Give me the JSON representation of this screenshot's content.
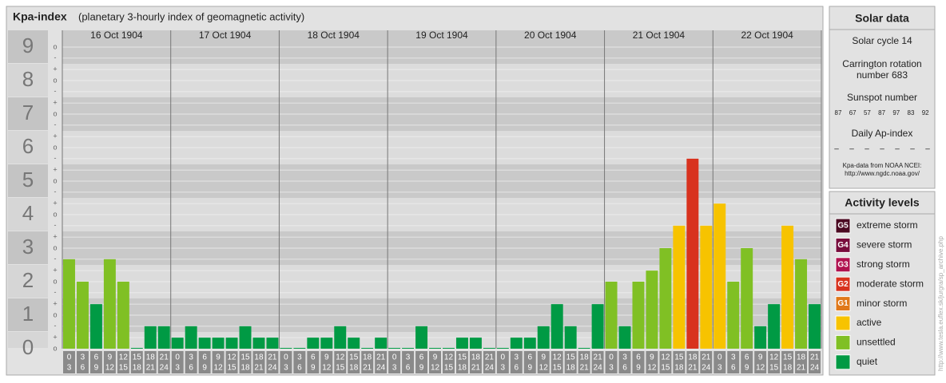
{
  "chart_data": {
    "type": "bar",
    "title": "Kpa-index",
    "subtitle": "(planetary 3-hourly index of geomagnetic activity)",
    "ylim": [
      0,
      9.5
    ],
    "yticks": [
      0,
      1,
      2,
      3,
      4,
      5,
      6,
      7,
      8,
      9
    ],
    "minor_ticks": [
      {
        "value": 0,
        "label": "o"
      },
      {
        "value": 0.33,
        "label": "+"
      },
      {
        "value": 0.67,
        "label": "-"
      },
      {
        "value": 1,
        "label": "o"
      },
      {
        "value": 1.33,
        "label": "+"
      },
      {
        "value": 1.67,
        "label": "-"
      },
      {
        "value": 2,
        "label": "o"
      },
      {
        "value": 2.33,
        "label": "+"
      },
      {
        "value": 2.67,
        "label": "-"
      },
      {
        "value": 3,
        "label": "o"
      },
      {
        "value": 3.33,
        "label": "+"
      },
      {
        "value": 3.67,
        "label": "-"
      },
      {
        "value": 4,
        "label": "o"
      },
      {
        "value": 4.33,
        "label": "+"
      },
      {
        "value": 4.67,
        "label": "-"
      },
      {
        "value": 5,
        "label": "o"
      },
      {
        "value": 5.33,
        "label": "+"
      },
      {
        "value": 5.67,
        "label": "-"
      },
      {
        "value": 6,
        "label": "o"
      },
      {
        "value": 6.33,
        "label": "+"
      },
      {
        "value": 6.67,
        "label": "-"
      },
      {
        "value": 7,
        "label": "o"
      },
      {
        "value": 7.33,
        "label": "+"
      },
      {
        "value": 7.67,
        "label": "-"
      },
      {
        "value": 8,
        "label": "o"
      },
      {
        "value": 8.33,
        "label": "+"
      },
      {
        "value": 8.67,
        "label": "-"
      },
      {
        "value": 9,
        "label": "o"
      }
    ],
    "hours": [
      [
        "0",
        "3"
      ],
      [
        "3",
        "6"
      ],
      [
        "6",
        "9"
      ],
      [
        "9",
        "12"
      ],
      [
        "12",
        "15"
      ],
      [
        "15",
        "18"
      ],
      [
        "18",
        "21"
      ],
      [
        "21",
        "24"
      ]
    ],
    "days": [
      {
        "date": "16 Oct 1904",
        "values": [
          2.67,
          2,
          1.33,
          2.67,
          2,
          0,
          0.67,
          0.67
        ],
        "colors": [
          "#80c024",
          "#80c024",
          "#009a44",
          "#80c024",
          "#80c024",
          "#009a44",
          "#009a44",
          "#009a44"
        ]
      },
      {
        "date": "17 Oct 1904",
        "values": [
          0.33,
          0.67,
          0.33,
          0.33,
          0.33,
          0.67,
          0.33,
          0.33
        ],
        "colors": [
          "#009a44",
          "#009a44",
          "#009a44",
          "#009a44",
          "#009a44",
          "#009a44",
          "#009a44",
          "#009a44"
        ]
      },
      {
        "date": "18 Oct 1904",
        "values": [
          0,
          0,
          0.33,
          0.33,
          0.67,
          0.33,
          0,
          0.33
        ],
        "colors": [
          "#009a44",
          "#009a44",
          "#009a44",
          "#009a44",
          "#009a44",
          "#009a44",
          "#009a44",
          "#009a44"
        ]
      },
      {
        "date": "19 Oct 1904",
        "values": [
          0,
          0,
          0.67,
          0,
          0,
          0.33,
          0.33,
          0
        ],
        "colors": [
          "#009a44",
          "#009a44",
          "#009a44",
          "#009a44",
          "#009a44",
          "#009a44",
          "#009a44",
          "#009a44"
        ]
      },
      {
        "date": "20 Oct 1904",
        "values": [
          0,
          0.33,
          0.33,
          0.67,
          1.33,
          0.67,
          0,
          1.33
        ],
        "colors": [
          "#009a44",
          "#009a44",
          "#009a44",
          "#009a44",
          "#009a44",
          "#009a44",
          "#009a44",
          "#009a44"
        ]
      },
      {
        "date": "21 Oct 1904",
        "values": [
          2,
          0.67,
          2,
          2.33,
          3,
          3.67,
          5.67,
          3.67
        ],
        "colors": [
          "#80c024",
          "#009a44",
          "#80c024",
          "#80c024",
          "#80c024",
          "#f7c300",
          "#d8321e",
          "#f7c300"
        ]
      },
      {
        "date": "22 Oct 1904",
        "values": [
          4.33,
          2,
          3,
          0.67,
          1.33,
          3.67,
          2.67,
          1.33
        ],
        "colors": [
          "#f7c300",
          "#80c024",
          "#80c024",
          "#009a44",
          "#009a44",
          "#f7c300",
          "#80c024",
          "#009a44"
        ]
      }
    ]
  },
  "solar_data": {
    "title": "Solar data",
    "cycle": "Solar cycle 14",
    "carrington": [
      "Carrington rotation",
      "number 683"
    ],
    "sunspot_title": "Sunspot number",
    "sunspots": [
      87,
      67,
      57,
      87,
      97,
      83,
      92
    ],
    "ap_title": "Daily Ap-index",
    "ap": [
      "–",
      "–",
      "–",
      "–",
      "–",
      "–",
      "–"
    ],
    "source": [
      "Kpa-data from NOAA NCEI:",
      "http://www.ngdc.noaa.gov/"
    ]
  },
  "activity_levels": {
    "title": "Activity levels",
    "items": [
      {
        "badge": "G5",
        "label": "extreme storm",
        "color": "#4b0a22"
      },
      {
        "badge": "G4",
        "label": "severe storm",
        "color": "#780c3c"
      },
      {
        "badge": "G3",
        "label": "strong storm",
        "color": "#b0124f"
      },
      {
        "badge": "G2",
        "label": "moderate storm",
        "color": "#d8321e"
      },
      {
        "badge": "G1",
        "label": "minor storm",
        "color": "#e0781a"
      },
      {
        "label": "active",
        "color": "#f7c300"
      },
      {
        "label": "unsettled",
        "color": "#80c024"
      },
      {
        "label": "quiet",
        "color": "#009a44"
      }
    ]
  },
  "watermark": "http://www.tesla.euflex.sk/jurgra/sp_archive.php"
}
